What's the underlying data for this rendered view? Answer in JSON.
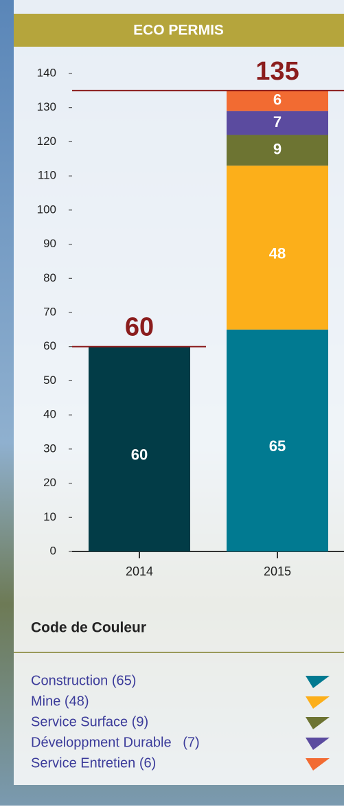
{
  "chart_data": {
    "type": "stacked_bar",
    "title": "ECO PERMIS",
    "categories": [
      "2014",
      "2015"
    ],
    "series": [
      {
        "color": "#023c47",
        "values": [
          60,
          null
        ]
      },
      {
        "name": "Construction (65)",
        "color": "#017a91",
        "values": [
          null,
          65
        ]
      },
      {
        "name": "Mine (48)",
        "color": "#fcaf1a",
        "values": [
          null,
          48
        ]
      },
      {
        "name": "Service Surface (9)",
        "color": "#6d7432",
        "values": [
          null,
          9
        ]
      },
      {
        "name": "Développment Durable   (7)",
        "color": "#5b4b9f",
        "values": [
          null,
          7
        ]
      },
      {
        "name": "Service Entretien (6)",
        "color": "#f26b32",
        "values": [
          null,
          6
        ]
      }
    ],
    "totals": [
      60,
      135
    ],
    "ylim": [
      0,
      140
    ],
    "yticks": [
      0,
      10,
      20,
      30,
      40,
      50,
      60,
      70,
      80,
      90,
      100,
      110,
      120,
      130,
      140
    ],
    "legend_title": "Code de Couleur"
  }
}
